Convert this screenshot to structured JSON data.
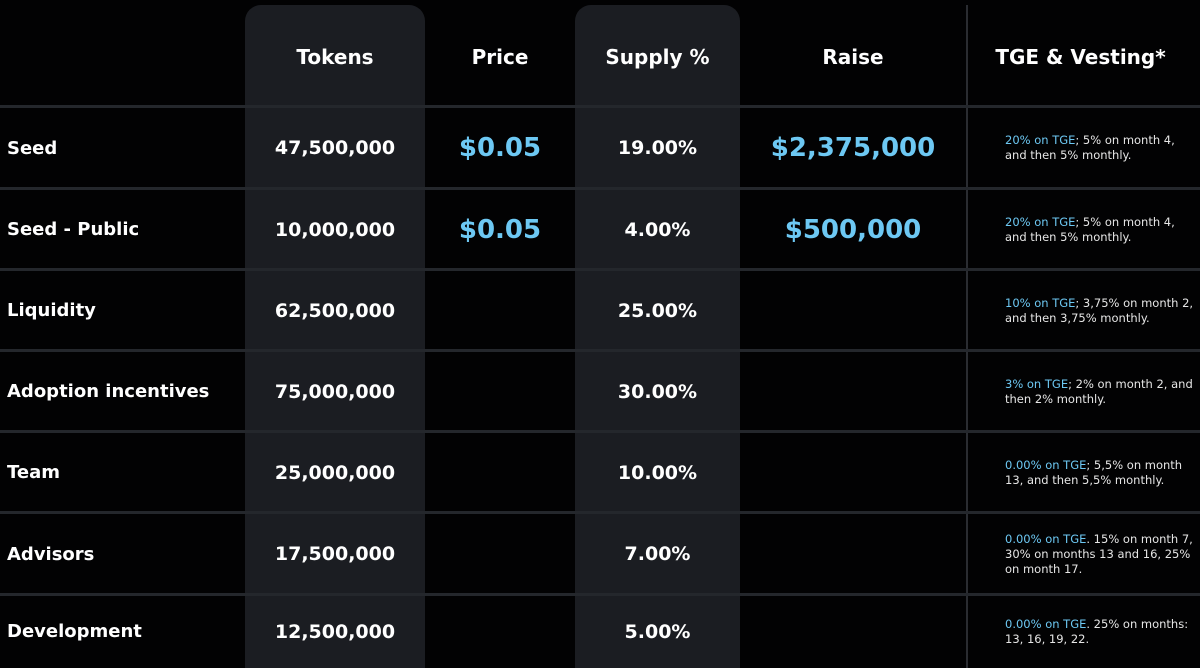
{
  "headers": {
    "tokens": "Tokens",
    "price": "Price",
    "supply": "Supply %",
    "raise": "Raise",
    "vesting": "TGE & Vesting*"
  },
  "rows": [
    {
      "label": "Seed",
      "tokens": "47,500,000",
      "price": "$0.05",
      "supply": "19.00%",
      "raise": "$2,375,000",
      "vest_hl": "20% on TGE",
      "vest_rest": "; 5% on month 4, and then 5% monthly."
    },
    {
      "label": "Seed - Public",
      "tokens": "10,000,000",
      "price": "$0.05",
      "supply": "4.00%",
      "raise": "$500,000",
      "vest_hl": "20% on TGE",
      "vest_rest": "; 5% on month 4, and then 5% monthly."
    },
    {
      "label": "Liquidity",
      "tokens": "62,500,000",
      "price": "",
      "supply": "25.00%",
      "raise": "",
      "vest_hl": "10% on TGE",
      "vest_rest": "; 3,75% on month 2, and then 3,75% monthly."
    },
    {
      "label": "Adoption incentives",
      "tokens": "75,000,000",
      "price": "",
      "supply": "30.00%",
      "raise": "",
      "vest_hl": "3% on TGE",
      "vest_rest": "; 2% on month 2, and then 2% monthly."
    },
    {
      "label": "Team",
      "tokens": "25,000,000",
      "price": "",
      "supply": "10.00%",
      "raise": "",
      "vest_hl": "0.00% on TGE",
      "vest_rest": "; 5,5% on month 13, and then 5,5% monthly."
    },
    {
      "label": "Advisors",
      "tokens": "17,500,000",
      "price": "",
      "supply": "7.00%",
      "raise": "",
      "vest_hl": "0.00% on TGE",
      "vest_rest": ". 15% on month 7, 30% on months 13 and 16, 25% on month 17."
    },
    {
      "label": "Development",
      "tokens": "12,500,000",
      "price": "",
      "supply": "5.00%",
      "raise": "",
      "vest_hl": "0.00% on TGE",
      "vest_rest": ". 25% on months: 13, 16, 19, 22."
    }
  ]
}
